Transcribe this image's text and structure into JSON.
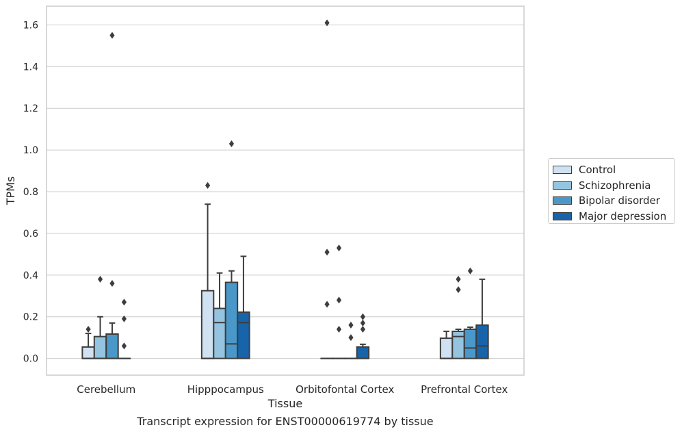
{
  "chart_data": {
    "type": "box",
    "xlabel": "Tissue",
    "ylabel": "TPMs",
    "caption": "Transcript expression for ENST00000619774 by tissue",
    "ylim": [
      -0.08,
      1.69
    ],
    "yticks": [
      0.0,
      0.2,
      0.4,
      0.6,
      0.8,
      1.0,
      1.2,
      1.4,
      1.6
    ],
    "ytick_labels": [
      "0.0",
      "0.2",
      "0.4",
      "0.6",
      "0.8",
      "1.0",
      "1.2",
      "1.4",
      "1.6"
    ],
    "categories": [
      "Cerebellum",
      "Hipppocampus",
      "Orbitofontal Cortex",
      "Prefrontal Cortex"
    ],
    "grid": "horizontal",
    "legend_position": "right",
    "series": [
      {
        "name": "Control",
        "color": "#d0e1f2",
        "boxes": [
          {
            "q1": 0.0,
            "median": 0.0,
            "q3": 0.055,
            "whisker_low": 0.0,
            "whisker_high": 0.12,
            "outliers": [
              0.14
            ]
          },
          {
            "q1": 0.0,
            "median": 0.0,
            "q3": 0.325,
            "whisker_low": 0.0,
            "whisker_high": 0.74,
            "outliers": [
              0.83
            ]
          },
          {
            "q1": 0.0,
            "median": 0.0,
            "q3": 0.0,
            "whisker_low": 0.0,
            "whisker_high": 0.0,
            "outliers": [
              0.26,
              0.51,
              1.61
            ]
          },
          {
            "q1": 0.0,
            "median": 0.0,
            "q3": 0.097,
            "whisker_low": 0.0,
            "whisker_high": 0.13,
            "outliers": []
          }
        ]
      },
      {
        "name": "Schizophrenia",
        "color": "#94c4df",
        "boxes": [
          {
            "q1": 0.0,
            "median": 0.0,
            "q3": 0.105,
            "whisker_low": 0.0,
            "whisker_high": 0.2,
            "outliers": [
              0.38
            ]
          },
          {
            "q1": 0.0,
            "median": 0.172,
            "q3": 0.24,
            "whisker_low": 0.0,
            "whisker_high": 0.41,
            "outliers": []
          },
          {
            "q1": 0.0,
            "median": 0.0,
            "q3": 0.0,
            "whisker_low": 0.0,
            "whisker_high": 0.0,
            "outliers": [
              0.14,
              0.28,
              0.53
            ]
          },
          {
            "q1": 0.0,
            "median": 0.105,
            "q3": 0.13,
            "whisker_low": 0.0,
            "whisker_high": 0.14,
            "outliers": [
              0.33,
              0.38
            ]
          }
        ]
      },
      {
        "name": "Bipolar disorder",
        "color": "#4a98c9",
        "boxes": [
          {
            "q1": 0.0,
            "median": 0.0,
            "q3": 0.117,
            "whisker_low": 0.0,
            "whisker_high": 0.17,
            "outliers": [
              0.36,
              1.55
            ]
          },
          {
            "q1": 0.0,
            "median": 0.07,
            "q3": 0.365,
            "whisker_low": 0.0,
            "whisker_high": 0.42,
            "outliers": [
              1.03
            ]
          },
          {
            "q1": 0.0,
            "median": 0.0,
            "q3": 0.0,
            "whisker_low": 0.0,
            "whisker_high": 0.0,
            "outliers": [
              0.1,
              0.16
            ]
          },
          {
            "q1": 0.0,
            "median": 0.05,
            "q3": 0.14,
            "whisker_low": 0.0,
            "whisker_high": 0.15,
            "outliers": [
              0.42
            ]
          }
        ]
      },
      {
        "name": "Major depression",
        "color": "#1764ab",
        "boxes": [
          {
            "q1": 0.0,
            "median": 0.0,
            "q3": 0.0,
            "whisker_low": 0.0,
            "whisker_high": 0.0,
            "outliers": [
              0.06,
              0.19,
              0.27
            ]
          },
          {
            "q1": 0.0,
            "median": 0.172,
            "q3": 0.222,
            "whisker_low": 0.0,
            "whisker_high": 0.49,
            "outliers": []
          },
          {
            "q1": 0.0,
            "median": 0.0,
            "q3": 0.055,
            "whisker_low": 0.0,
            "whisker_high": 0.068,
            "outliers": [
              0.14,
              0.17,
              0.2
            ]
          },
          {
            "q1": 0.0,
            "median": 0.06,
            "q3": 0.16,
            "whisker_low": 0.0,
            "whisker_high": 0.38,
            "outliers": []
          }
        ]
      }
    ]
  }
}
